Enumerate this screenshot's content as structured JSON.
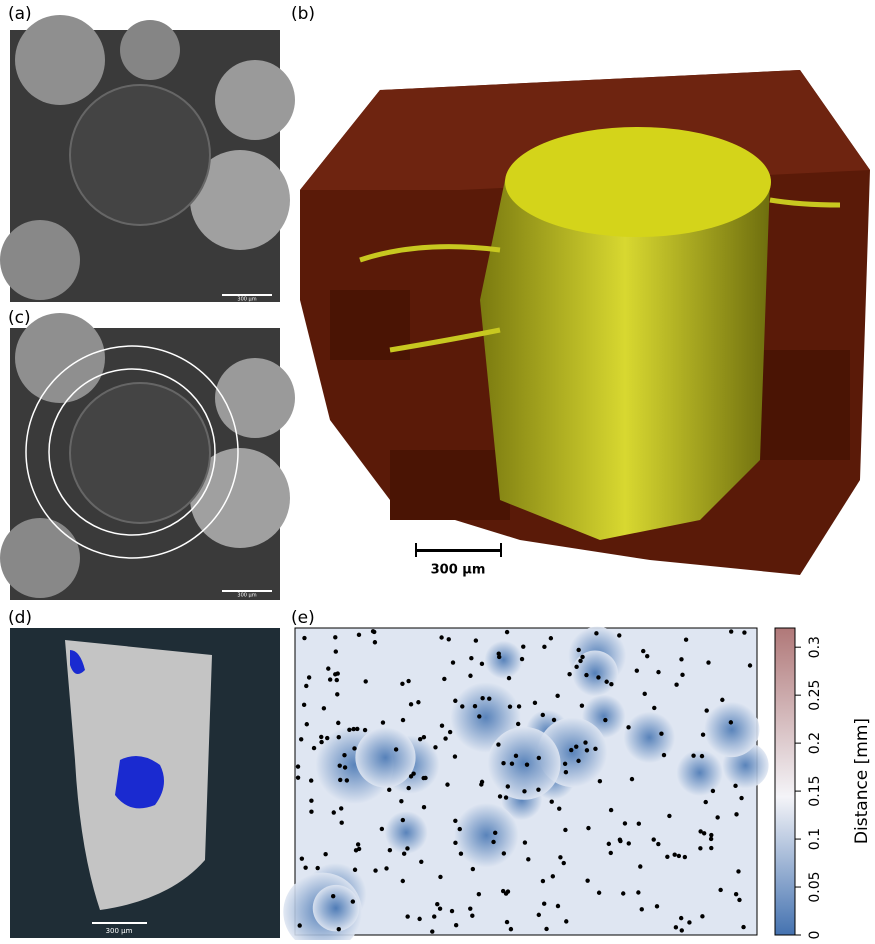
{
  "panels": {
    "a": {
      "label": "(a)",
      "scale_bar": "300 µm"
    },
    "b": {
      "label": "(b)",
      "scale_bar": "300 µm"
    },
    "c": {
      "label": "(c)",
      "scale_bar": "300 µm"
    },
    "d": {
      "label": "(d)",
      "scale_bar": "300 µm"
    },
    "e": {
      "label": "(e)",
      "colorbar": {
        "title": "Distance [mm]",
        "lim": [
          0,
          0.32
        ],
        "ticks": [
          0,
          0.05,
          0.1,
          0.15,
          0.2,
          0.25,
          0.3
        ]
      }
    }
  }
}
